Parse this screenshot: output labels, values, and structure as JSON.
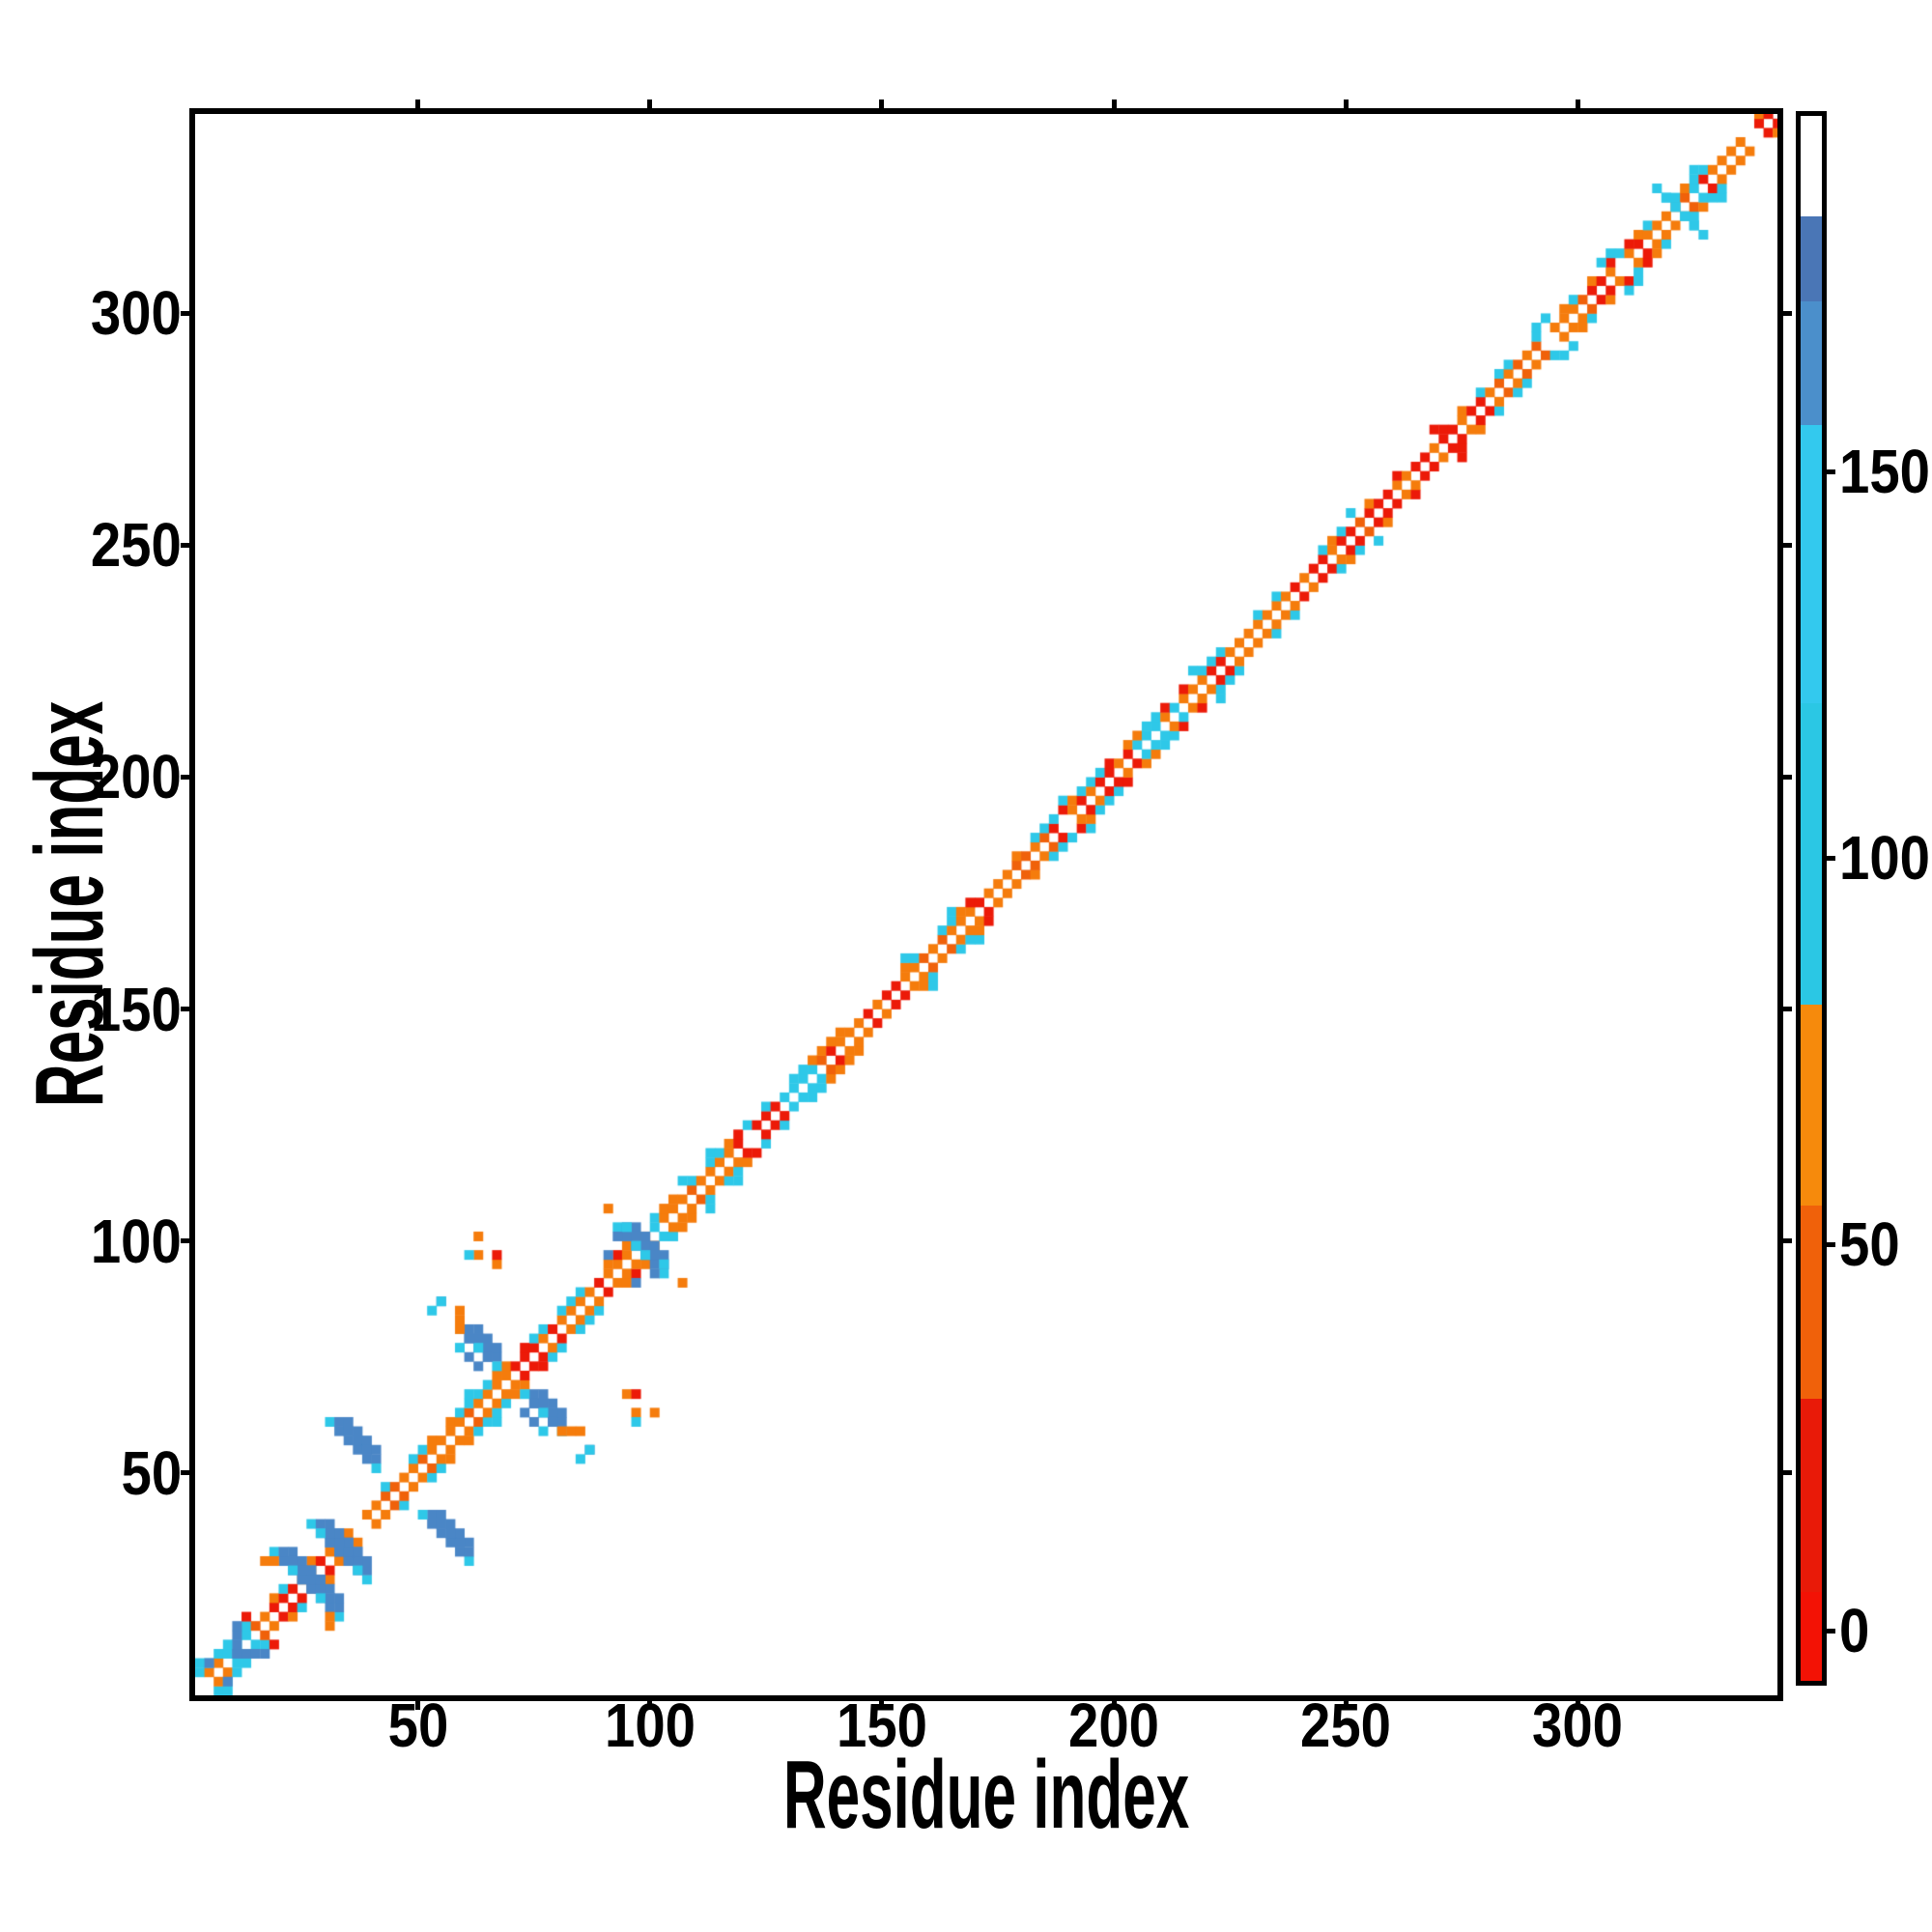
{
  "figure": {
    "background": "#ffffff"
  },
  "plot": {
    "x_axis": {
      "title": "Residue index",
      "min": 2,
      "max": 343,
      "tick_values": [
        50,
        100,
        150,
        200,
        250,
        300
      ]
    },
    "y_axis": {
      "title": "Residue index",
      "min": 2,
      "max": 343,
      "tick_values": [
        50,
        100,
        150,
        200,
        250,
        300
      ]
    }
  },
  "colorbar": {
    "vmin": -6.5,
    "vmax": 196,
    "tick_values": [
      0,
      50,
      100,
      150
    ],
    "segments": [
      {
        "from": -6.5,
        "to": 5,
        "color": "#F31205"
      },
      {
        "from": 5,
        "to": 30,
        "color": "#E91A08"
      },
      {
        "from": 30,
        "to": 55,
        "color": "#F0610A"
      },
      {
        "from": 55,
        "to": 81,
        "color": "#F68A0C"
      },
      {
        "from": 81,
        "to": 120,
        "color": "#2BC7E4"
      },
      {
        "from": 120,
        "to": 156,
        "color": "#33C9EE"
      },
      {
        "from": 156,
        "to": 172,
        "color": "#4B8FCB"
      },
      {
        "from": 172,
        "to": 183,
        "color": "#4A76B6"
      },
      {
        "from": 183,
        "to": 196,
        "color": "#FFFFFF"
      }
    ]
  },
  "chart_data": {
    "type": "heatmap",
    "title": "",
    "xlabel": "Residue index",
    "ylabel": "Residue index",
    "x_range": [
      2,
      343
    ],
    "y_range": [
      2,
      343
    ],
    "colorbar_ticks": [
      0,
      50,
      100,
      150
    ],
    "description": "Symmetric residue-residue contact map: a near-diagonal band of contacts (white on the exact diagonal, orange/red at sequence separation ~2, cyan fringes at separation ~4-6) plus off-diagonal anti-parallel contact streaks in the N-terminal region (residues ~10-105) and near residue ~320.",
    "grid": false,
    "legend": "colorbar-right",
    "cell_size_residues": 2,
    "seed": 7,
    "colors": {
      "orange": "#F57C0C",
      "orange_dark": "#F0610A",
      "red": "#EC1A08",
      "cyan": "#2EC8E8",
      "blue": "#4A86C6",
      "background": "#FFFFFF"
    },
    "diagonal_band": {
      "white_center": true,
      "off1_red_probability": 0.17,
      "off1_red_probability_in_red_zone": 0.48,
      "off2_cyan_probability": 0.15,
      "off2_cyan_probability_in_cyan_zone": 0.52,
      "red_zones": [
        [
          22,
          36
        ],
        [
          44,
          52
        ],
        [
          68,
          78
        ],
        [
          88,
          96
        ],
        [
          118,
          126
        ],
        [
          140,
          152
        ],
        [
          168,
          176
        ],
        [
          190,
          200
        ],
        [
          216,
          224
        ],
        [
          238,
          248
        ],
        [
          255,
          278
        ],
        [
          296,
          306
        ],
        [
          318,
          326
        ],
        [
          334,
          341
        ]
      ],
      "cyan_zones": [
        [
          1,
          14
        ],
        [
          45,
          52
        ],
        [
          58,
          70
        ],
        [
          74,
          84
        ],
        [
          92,
          104
        ],
        [
          106,
          124
        ],
        [
          128,
          138
        ],
        [
          154,
          166
        ],
        [
          182,
          196
        ],
        [
          206,
          218
        ],
        [
          222,
          234
        ],
        [
          243,
          252
        ],
        [
          280,
          295
        ],
        [
          308,
          326
        ],
        [
          335,
          342
        ]
      ],
      "cyan_inner_zones": [
        [
          6,
          12
        ],
        [
          92,
          100
        ],
        [
          128,
          134
        ],
        [
          203,
          214
        ],
        [
          318,
          324
        ]
      ]
    },
    "features": {
      "streaks": [
        {
          "from": [
            19,
            32
          ],
          "to": [
            29,
            22
          ],
          "w": 2,
          "color": "blue",
          "tips": "cyan"
        },
        {
          "from": [
            26,
            39
          ],
          "to": [
            36,
            29
          ],
          "w": 2,
          "color": "blue",
          "tips": "cyan"
        },
        {
          "from": [
            31,
            60
          ],
          "to": [
            41,
            50
          ],
          "w": 2,
          "color": "blue",
          "tips": "cyan"
        },
        {
          "from": [
            59,
            80
          ],
          "to": [
            67,
            72
          ],
          "w": 2,
          "color": "blue",
          "tips": "cyan"
        },
        {
          "from": [
            92,
            103
          ],
          "to": [
            98,
            97
          ],
          "w": 2,
          "color": "blue",
          "tips": "cyan"
        },
        {
          "from": [
            316,
            327
          ],
          "to": [
            324,
            319
          ],
          "w": 1,
          "color": "cyan"
        }
      ],
      "dashes": [
        {
          "from": [
            11,
            11
          ],
          "to": [
            17,
            11
          ],
          "color": "blue"
        },
        {
          "from": [
            58,
            81
          ],
          "to": [
            58,
            86
          ],
          "color": "orange"
        },
        {
          "from": [
            17,
            30
          ],
          "to": [
            20,
            30
          ],
          "color": "orange"
        }
      ],
      "dots": [
        {
          "at": [
            3,
            8
          ],
          "color": "cyan"
        },
        {
          "at": [
            5,
            9
          ],
          "color": "blue"
        },
        {
          "at": [
            54,
            86
          ],
          "color": "blue"
        },
        {
          "at": [
            58,
            77
          ],
          "color": "cyan"
        },
        {
          "at": [
            62,
            77
          ],
          "color": "cyan"
        },
        {
          "at": [
            63,
            73
          ],
          "color": "blue"
        },
        {
          "at": [
            75,
            64
          ],
          "color": "blue"
        },
        {
          "at": [
            75,
            60
          ],
          "color": "blue"
        },
        {
          "at": [
            79,
            60
          ],
          "color": "blue"
        },
        {
          "at": [
            84,
            52
          ],
          "color": "cyan"
        },
        {
          "at": [
            86,
            54
          ],
          "color": "cyan"
        },
        {
          "at": [
            63,
            96
          ],
          "color": "orange"
        },
        {
          "at": [
            66,
            94
          ],
          "color": "orange"
        },
        {
          "at": [
            97,
            66
          ],
          "color": "red"
        },
        {
          "at": [
            100,
            62
          ],
          "color": "orange"
        },
        {
          "at": [
            96,
            61
          ],
          "color": "cyan"
        },
        {
          "at": [
            90,
            106
          ],
          "color": "orange"
        },
        {
          "at": [
            101,
            92
          ],
          "color": "blue"
        },
        {
          "at": [
            97,
            90
          ],
          "color": "blue"
        },
        {
          "at": [
            103,
            95
          ],
          "color": "cyan"
        },
        {
          "at": [
            305,
            311
          ],
          "color": "cyan"
        }
      ]
    }
  }
}
